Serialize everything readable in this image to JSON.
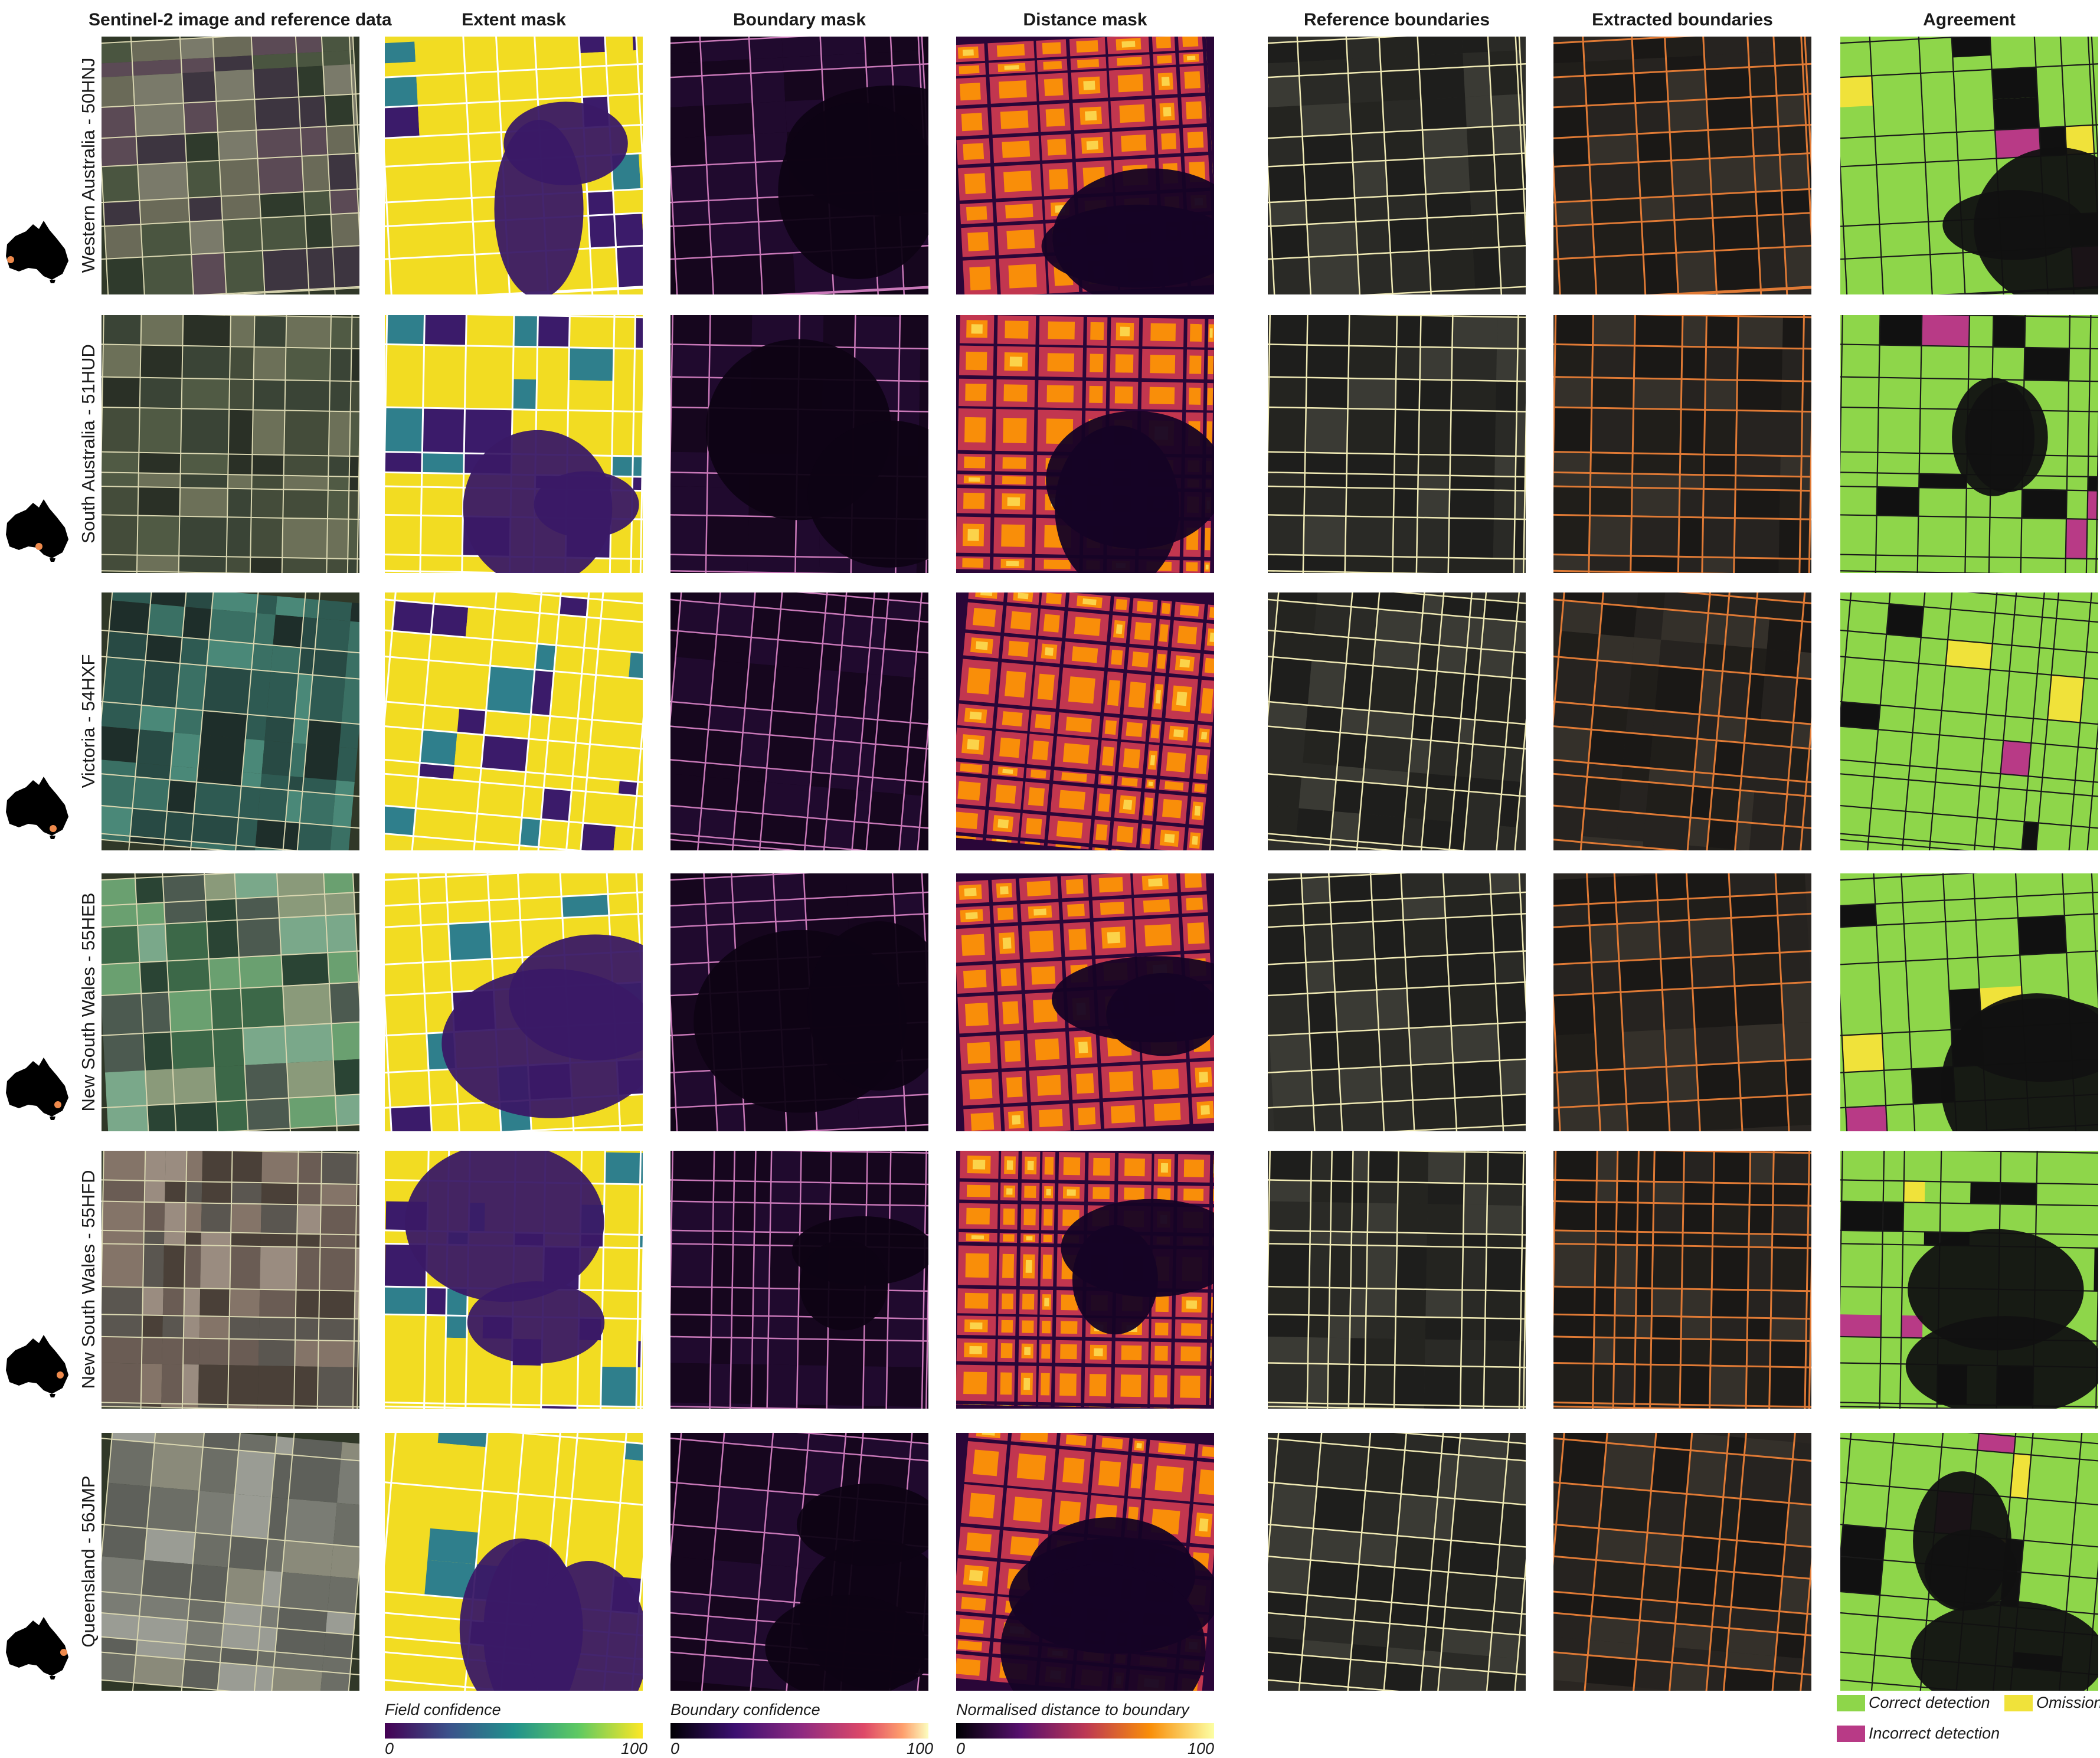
{
  "columns": [
    "Sentinel-2 image and reference data",
    "Extent mask",
    "Boundary mask",
    "Distance mask",
    "Reference boundaries",
    "Extracted boundaries",
    "Agreement"
  ],
  "rows": [
    "Western Australia - 50HNJ",
    "South Australia - 51HUD",
    "Victoria - 54HXF",
    "New South Wales - 55HEB",
    "New South Wales - 55HFD",
    "Queensland - 56JMP"
  ],
  "colorbars": [
    {
      "title": "Field confidence",
      "min": "0",
      "max": "100"
    },
    {
      "title": "Boundary confidence",
      "min": "0",
      "max": "100"
    },
    {
      "title": "Normalised distance to boundary",
      "min": "0",
      "max": "100"
    }
  ],
  "legend": {
    "correct": "Correct detection",
    "omission": "Omission",
    "incorrect": "Incorrect detection"
  },
  "colors": {
    "correct": "#8ed64a",
    "omission": "#f0e23a",
    "incorrect": "#b83a86",
    "reference_line": "#efe9b4",
    "extracted_line": "#e07a35",
    "map_marker": "#ef8a4c"
  }
}
